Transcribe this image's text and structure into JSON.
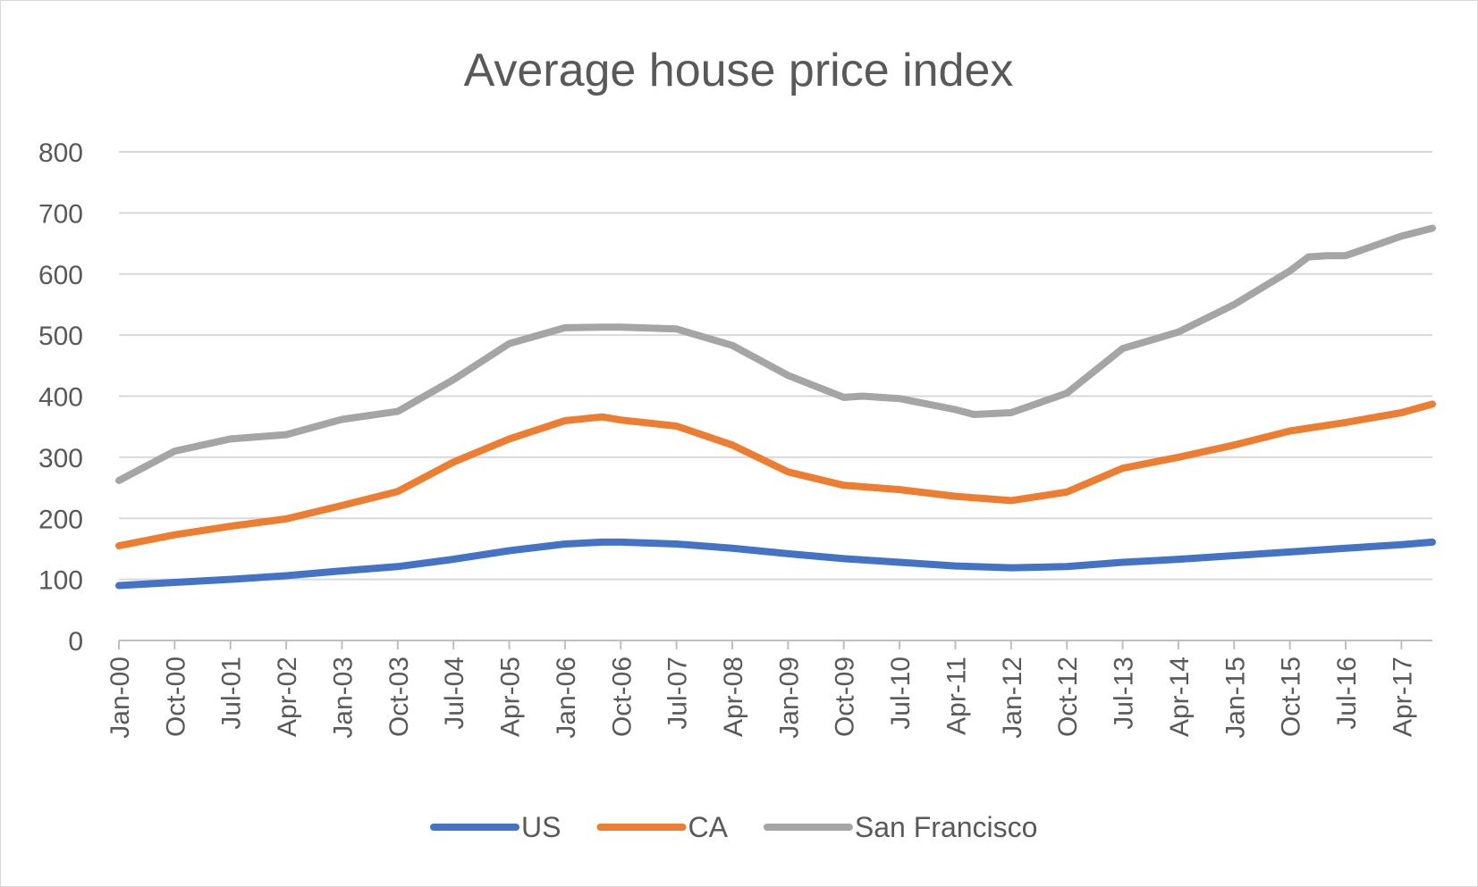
{
  "chart_data": {
    "type": "line",
    "title": "Average house price index",
    "xlabel": "",
    "ylabel": "",
    "ylim": [
      0,
      800
    ],
    "yticks": [
      "0",
      "100",
      "200",
      "300",
      "400",
      "500",
      "600",
      "700",
      "800"
    ],
    "xticks": [
      "Jan-00",
      "Oct-00",
      "Jul-01",
      "Apr-02",
      "Jan-03",
      "Oct-03",
      "Jul-04",
      "Apr-05",
      "Jan-06",
      "Oct-06",
      "Jul-07",
      "Apr-08",
      "Jan-09",
      "Oct-09",
      "Jul-10",
      "Apr-11",
      "Jan-12",
      "Oct-12",
      "Jul-13",
      "Apr-14",
      "Jan-15",
      "Oct-15",
      "Jul-16",
      "Apr-17"
    ],
    "grid": true,
    "legend_position": "bottom",
    "x_range": [
      "Jan-00",
      "Sep-17"
    ],
    "series": [
      {
        "name": "US",
        "color": "#4472c4",
        "x": [
          "Jan-00",
          "Oct-00",
          "Jul-01",
          "Apr-02",
          "Jan-03",
          "Oct-03",
          "Jul-04",
          "Apr-05",
          "Jan-06",
          "Jul-06",
          "Oct-06",
          "Jul-07",
          "Apr-08",
          "Jan-09",
          "Oct-09",
          "Jul-10",
          "Apr-11",
          "Jan-12",
          "Oct-12",
          "Jul-13",
          "Apr-14",
          "Jan-15",
          "Oct-15",
          "Jul-16",
          "Apr-17",
          "Sep-17"
        ],
        "values": [
          90,
          95,
          100,
          106,
          114,
          121,
          133,
          147,
          158,
          161,
          161,
          158,
          151,
          142,
          134,
          128,
          122,
          119,
          121,
          128,
          133,
          139,
          145,
          151,
          157,
          161
        ]
      },
      {
        "name": "CA",
        "color": "#ed7d31",
        "x": [
          "Jan-00",
          "Oct-00",
          "Jul-01",
          "Apr-02",
          "Jan-03",
          "Oct-03",
          "Jul-04",
          "Apr-05",
          "Jan-06",
          "Jul-06",
          "Oct-06",
          "Jul-07",
          "Apr-08",
          "Jan-09",
          "Oct-09",
          "Jul-10",
          "Apr-11",
          "Jan-12",
          "Oct-12",
          "Jul-13",
          "Apr-14",
          "Jan-15",
          "Oct-15",
          "Jul-16",
          "Apr-17",
          "Sep-17"
        ],
        "values": [
          155,
          173,
          187,
          199,
          221,
          244,
          292,
          330,
          360,
          366,
          361,
          351,
          320,
          276,
          254,
          247,
          236,
          229,
          243,
          282,
          300,
          320,
          343,
          357,
          373,
          387
        ]
      },
      {
        "name": "San Francisco",
        "color": "#a5a5a5",
        "x": [
          "Jan-00",
          "Oct-00",
          "Jul-01",
          "Apr-02",
          "Jan-03",
          "Oct-03",
          "Jul-04",
          "Apr-05",
          "Jan-06",
          "Jul-06",
          "Oct-06",
          "Jul-07",
          "Apr-08",
          "Jan-09",
          "Oct-09",
          "Jan-10",
          "Jul-10",
          "Apr-11",
          "Jul-11",
          "Jan-12",
          "Oct-12",
          "Jul-13",
          "Apr-14",
          "Jan-15",
          "Oct-15",
          "Jan-16",
          "Apr-16",
          "Jul-16",
          "Apr-17",
          "Sep-17"
        ],
        "values": [
          262,
          310,
          330,
          337,
          362,
          375,
          427,
          486,
          512,
          513,
          513,
          510,
          483,
          434,
          398,
          400,
          396,
          378,
          370,
          373,
          405,
          478,
          505,
          550,
          605,
          628,
          630,
          630,
          662,
          675
        ]
      }
    ]
  }
}
